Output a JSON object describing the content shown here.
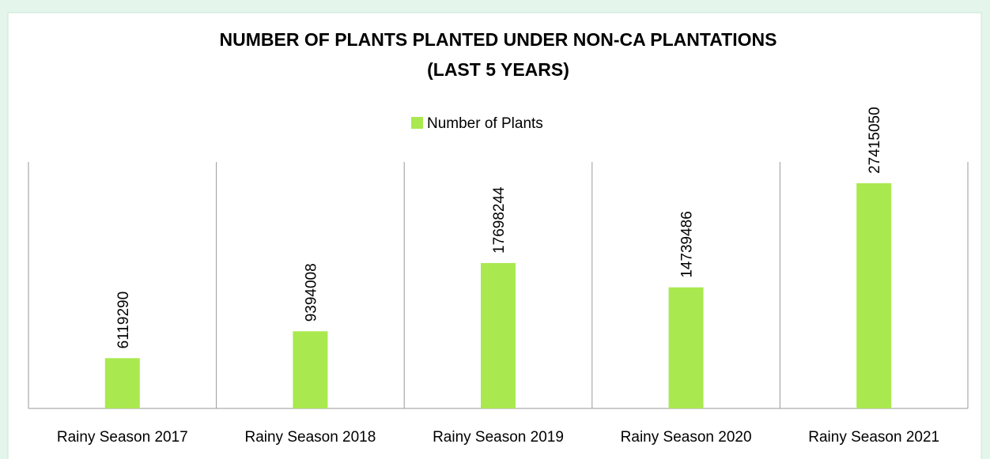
{
  "chart_data": {
    "type": "bar",
    "title": [
      "NUMBER OF PLANTS PLANTED UNDER NON-CA PLANTATIONS",
      "(LAST 5 YEARS)"
    ],
    "categories": [
      "Rainy Season 2017",
      "Rainy Season 2018",
      "Rainy Season 2019",
      "Rainy Season 2020",
      "Rainy Season 2021"
    ],
    "series": [
      {
        "name": "Number of Plants",
        "color": "#a9e94f",
        "values": [
          6119290,
          9394008,
          17698244,
          14739486,
          27415050
        ]
      }
    ],
    "ylim": [
      0,
      30000000
    ],
    "legend": "top"
  }
}
